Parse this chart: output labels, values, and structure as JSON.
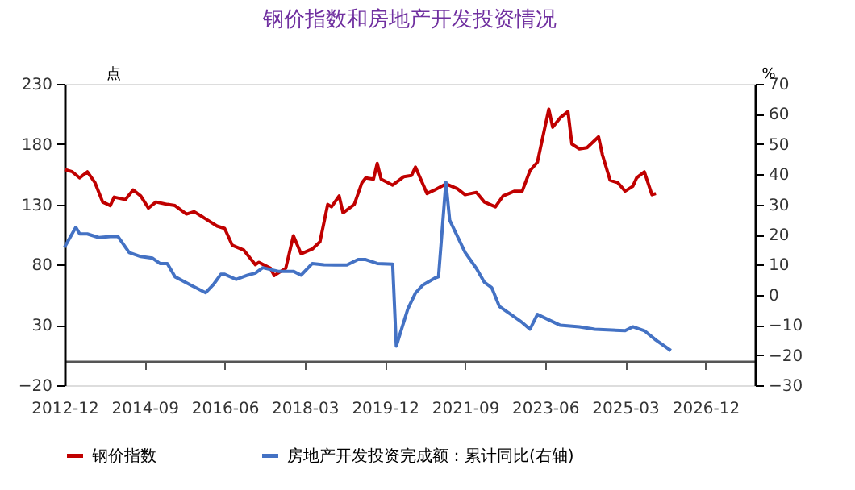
{
  "chart_data": {
    "type": "line",
    "title": "钢价指数和房地产开发投资情况",
    "ylabel": "点",
    "y2label": "%",
    "xlim": [
      "2012-12",
      "2028-01"
    ],
    "xticks": [
      "2012-12",
      "2014-09",
      "2016-06",
      "2018-03",
      "2019-12",
      "2021-09",
      "2023-06",
      "2025-03",
      "2026-12"
    ],
    "ylim": [
      -20,
      230
    ],
    "yticks": [
      -20,
      30,
      80,
      130,
      180,
      230
    ],
    "y2lim": [
      -30,
      70
    ],
    "y2ticks": [
      -30,
      -20,
      -10,
      0,
      10,
      20,
      30,
      40,
      50,
      60,
      70
    ],
    "grid": false,
    "legend": "bottom",
    "marker": "none",
    "line_style": "solid",
    "series": [
      {
        "name": "钢价指数",
        "color": "#c00000",
        "x": [
          "2012-12",
          "2013-02",
          "2013-04",
          "2013-06",
          "2013-08",
          "2013-10",
          "2013-12",
          "2014-01",
          "2014-04",
          "2014-06",
          "2014-08",
          "2014-10",
          "2014-12",
          "2015-03",
          "2015-05",
          "2015-08",
          "2015-10",
          "2015-12",
          "2016-04",
          "2016-06",
          "2016-08",
          "2016-11",
          "2017-02",
          "2017-03",
          "2017-06",
          "2017-07",
          "2017-10",
          "2017-12",
          "2018-02",
          "2018-05",
          "2018-07",
          "2018-09",
          "2018-10",
          "2018-12",
          "2019-01",
          "2019-04",
          "2019-06",
          "2019-07",
          "2019-09",
          "2019-10",
          "2019-11",
          "2020-02",
          "2020-05",
          "2020-07",
          "2020-08",
          "2020-11",
          "2021-01",
          "2021-04",
          "2021-07",
          "2021-09",
          "2021-12",
          "2022-02",
          "2022-05",
          "2022-07",
          "2022-10",
          "2022-12",
          "2023-02",
          "2023-04",
          "2023-07",
          "2023-08",
          "2023-10",
          "2023-12",
          "2024-01",
          "2024-03",
          "2024-05",
          "2024-08",
          "2024-09",
          "2024-11",
          "2025-01",
          "2025-03",
          "2025-05",
          "2025-06",
          "2025-08",
          "2025-10",
          "2025-11"
        ],
        "values": [
          159,
          157,
          152,
          157,
          148,
          132,
          129,
          136,
          134,
          142,
          137,
          127,
          132,
          130,
          129,
          122,
          124,
          120,
          112,
          110,
          96,
          92,
          80,
          82,
          77,
          71,
          77,
          104,
          89,
          93,
          99,
          130,
          128,
          137,
          123,
          130,
          148,
          152,
          151,
          164,
          151,
          146,
          153,
          154,
          161,
          139,
          142,
          147,
          143,
          138,
          140,
          132,
          128,
          137,
          141,
          141,
          158,
          165,
          209,
          194,
          202,
          207,
          180,
          176,
          177,
          186,
          171,
          150,
          148,
          141,
          145,
          152,
          157,
          138,
          139
        ]
      },
      {
        "name": "房地产开发投资完成额：累计同比(右轴)",
        "color": "#4472c4",
        "axis": "y2",
        "x": [
          "2012-12",
          "2013-03",
          "2013-04",
          "2013-06",
          "2013-09",
          "2013-12",
          "2014-02",
          "2014-05",
          "2014-08",
          "2014-11",
          "2015-01",
          "2015-03",
          "2015-05",
          "2015-09",
          "2016-01",
          "2016-03",
          "2016-05",
          "2016-06",
          "2016-09",
          "2016-12",
          "2017-02",
          "2017-04",
          "2017-08",
          "2017-12",
          "2018-02",
          "2018-05",
          "2018-08",
          "2018-11",
          "2019-02",
          "2019-05",
          "2019-07",
          "2019-10",
          "2020-02",
          "2020-03",
          "2020-06",
          "2020-08",
          "2020-10",
          "2021-01",
          "2021-02",
          "2021-04",
          "2021-05",
          "2021-09",
          "2021-12",
          "2022-02",
          "2022-04",
          "2022-06",
          "2022-10",
          "2022-12",
          "2023-02",
          "2023-04",
          "2023-07",
          "2023-10",
          "2024-03",
          "2024-07",
          "2025-03",
          "2025-05",
          "2025-08",
          "2025-11",
          "2026-03"
        ],
        "values": [
          15.8,
          22.4,
          20.2,
          20.2,
          19,
          19.3,
          19.3,
          14,
          12.7,
          12.2,
          10.4,
          10.4,
          6,
          3.3,
          0.7,
          3.3,
          6.8,
          6.8,
          5.1,
          6.5,
          7.2,
          9,
          7.8,
          7.8,
          6.5,
          10.4,
          10,
          9.9,
          9.9,
          11.7,
          11.7,
          10.4,
          10.2,
          -17,
          -4.7,
          0.6,
          3.3,
          5.5,
          6,
          37.4,
          24.8,
          14.1,
          8.7,
          4.2,
          2.4,
          -3.8,
          -7.4,
          -9.2,
          -11.4,
          -6.5,
          -8.3,
          -10.1,
          -10.6,
          -11.4,
          -11.9,
          -10.6,
          -11.9,
          -15,
          -18.5
        ]
      }
    ]
  }
}
